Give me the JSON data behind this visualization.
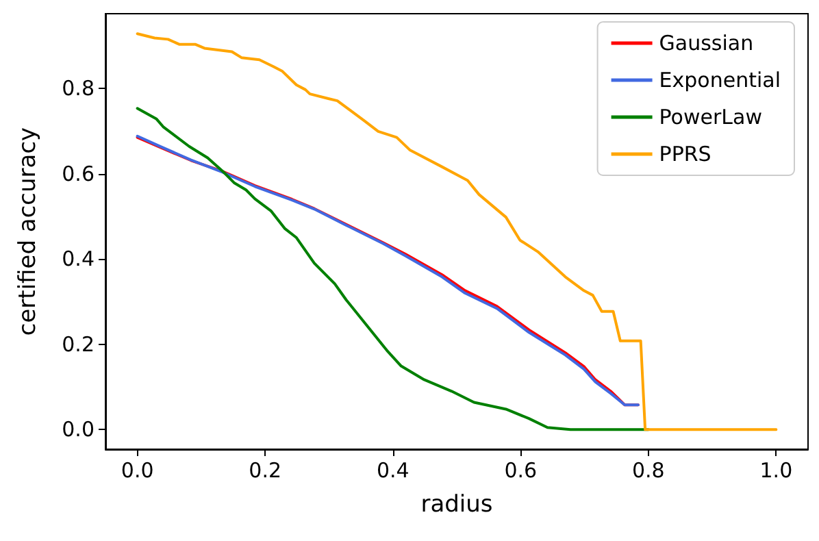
{
  "chart_data": {
    "type": "line",
    "xlabel": "radius",
    "ylabel": "certified accuracy",
    "xlim": [
      -0.05,
      1.05
    ],
    "ylim": [
      -0.046,
      0.975
    ],
    "xticks": [
      {
        "value": 0,
        "label": "0.0"
      },
      0.2,
      0.4,
      0.6,
      0.8,
      {
        "value": 1,
        "label": "1.0"
      }
    ],
    "yticks": [
      {
        "value": 0,
        "label": "0.0"
      },
      0.2,
      0.4,
      0.6,
      0.8
    ],
    "grid": false,
    "legend": "top right",
    "marker": "none",
    "line_style": "solid",
    "series": [
      {
        "name": "Gaussian",
        "color": "#ff0000",
        "x": [
          0,
          0.034,
          0.084,
          0.134,
          0.184,
          0.242,
          0.277,
          0.327,
          0.385,
          0.42,
          0.477,
          0.513,
          0.563,
          0.613,
          0.67,
          0.699,
          0.717,
          0.741,
          0.763,
          0.784
        ],
        "values": [
          0.685,
          0.663,
          0.631,
          0.605,
          0.572,
          0.54,
          0.518,
          0.481,
          0.438,
          0.411,
          0.363,
          0.326,
          0.289,
          0.234,
          0.18,
          0.148,
          0.117,
          0.09,
          0.058,
          0.058
        ]
      },
      {
        "name": "Exponential",
        "color": "#4169e1",
        "x": [
          0,
          0.034,
          0.084,
          0.134,
          0.184,
          0.242,
          0.277,
          0.327,
          0.385,
          0.42,
          0.477,
          0.513,
          0.563,
          0.613,
          0.67,
          0.699,
          0.717,
          0.741,
          0.763,
          0.784
        ],
        "values": [
          0.688,
          0.665,
          0.632,
          0.603,
          0.57,
          0.538,
          0.517,
          0.479,
          0.436,
          0.407,
          0.358,
          0.32,
          0.284,
          0.228,
          0.175,
          0.142,
          0.112,
          0.085,
          0.058,
          0.058
        ]
      },
      {
        "name": "PowerLaw",
        "color": "#008000",
        "x": [
          0,
          0.03,
          0.041,
          0.081,
          0.11,
          0.134,
          0.152,
          0.17,
          0.184,
          0.209,
          0.231,
          0.249,
          0.277,
          0.309,
          0.327,
          0.37,
          0.391,
          0.413,
          0.449,
          0.492,
          0.527,
          0.577,
          0.613,
          0.642,
          0.678,
          0.8
        ],
        "values": [
          0.753,
          0.728,
          0.709,
          0.664,
          0.637,
          0.605,
          0.578,
          0.562,
          0.541,
          0.513,
          0.471,
          0.45,
          0.39,
          0.342,
          0.304,
          0.224,
          0.185,
          0.149,
          0.117,
          0.09,
          0.064,
          0.048,
          0.026,
          0.005,
          0,
          0
        ]
      },
      {
        "name": "PPRS",
        "color": "#ffa500",
        "x": [
          0,
          0.027,
          0.048,
          0.066,
          0.091,
          0.105,
          0.148,
          0.163,
          0.191,
          0.213,
          0.227,
          0.249,
          0.263,
          0.27,
          0.299,
          0.313,
          0.356,
          0.377,
          0.406,
          0.427,
          0.477,
          0.517,
          0.535,
          0.577,
          0.599,
          0.627,
          0.67,
          0.699,
          0.713,
          0.727,
          0.745,
          0.756,
          0.788,
          0.795,
          1
        ],
        "values": [
          0.928,
          0.918,
          0.915,
          0.903,
          0.903,
          0.894,
          0.886,
          0.872,
          0.867,
          0.851,
          0.84,
          0.808,
          0.797,
          0.787,
          0.776,
          0.771,
          0.723,
          0.699,
          0.685,
          0.655,
          0.616,
          0.584,
          0.551,
          0.498,
          0.444,
          0.417,
          0.358,
          0.326,
          0.315,
          0.277,
          0.277,
          0.208,
          0.208,
          0,
          0
        ]
      }
    ]
  }
}
